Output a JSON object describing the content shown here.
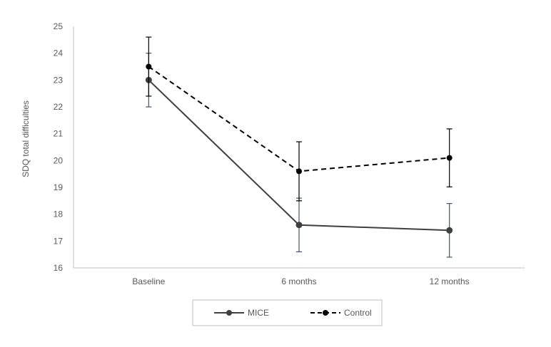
{
  "chart_data": {
    "type": "line",
    "title": "",
    "xlabel": "",
    "ylabel": "SDQ total difficulties",
    "ylim": [
      16,
      25
    ],
    "yticks": [
      16,
      17,
      18,
      19,
      20,
      21,
      22,
      23,
      24,
      25
    ],
    "categories": [
      "Baseline",
      "6 months",
      "12 months"
    ],
    "grid": false,
    "legend_position": "bottom",
    "series": [
      {
        "name": "MICE",
        "style": "solid",
        "color": "#404040",
        "values": [
          23.0,
          17.6,
          17.4
        ],
        "errors": [
          1.0,
          1.0,
          1.0
        ]
      },
      {
        "name": "Control",
        "style": "dashed",
        "color": "#000000",
        "values": [
          23.5,
          19.6,
          20.1
        ],
        "errors": [
          1.1,
          1.1,
          1.08
        ]
      }
    ]
  }
}
